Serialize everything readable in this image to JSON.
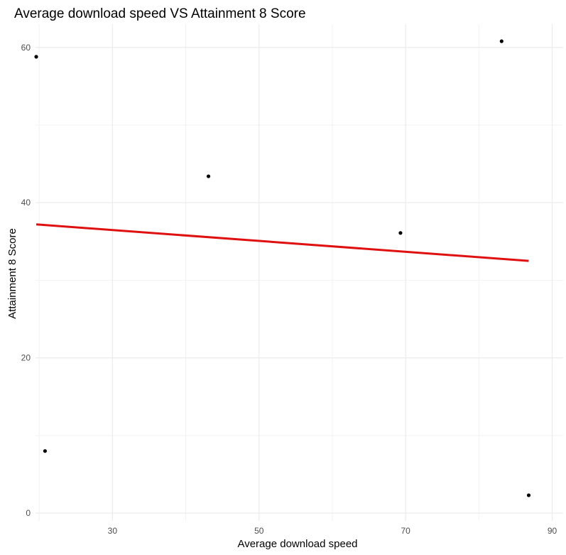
{
  "chart_data": {
    "type": "scatter",
    "title": "Average download speed VS Attainment 8 Score",
    "xlabel": "Average download speed",
    "ylabel": "Attainment 8 Score",
    "xlim": [
      19.5,
      91.5
    ],
    "ylim": [
      -1,
      63
    ],
    "x_ticks": [
      30,
      50,
      70,
      90
    ],
    "x_minor_grid": [
      20,
      40,
      60,
      80
    ],
    "y_ticks": [
      0,
      20,
      40,
      60
    ],
    "y_minor_grid": [
      10,
      30,
      50
    ],
    "grid": true,
    "legend": "none",
    "points": [
      {
        "x": 19.6,
        "y": 58.8
      },
      {
        "x": 20.8,
        "y": 8.0
      },
      {
        "x": 43.1,
        "y": 43.4
      },
      {
        "x": 69.3,
        "y": 36.1
      },
      {
        "x": 83.1,
        "y": 60.8
      },
      {
        "x": 86.8,
        "y": 2.3
      }
    ],
    "trend_line": {
      "x": [
        19.6,
        86.8
      ],
      "y": [
        37.2,
        32.5
      ]
    },
    "colors": {
      "points": "#000000",
      "trend_line": "#e01010",
      "grid_major": "#ebebeb",
      "grid_minor": "#f2f2f2",
      "tick_text": "#4d4d4d"
    }
  }
}
